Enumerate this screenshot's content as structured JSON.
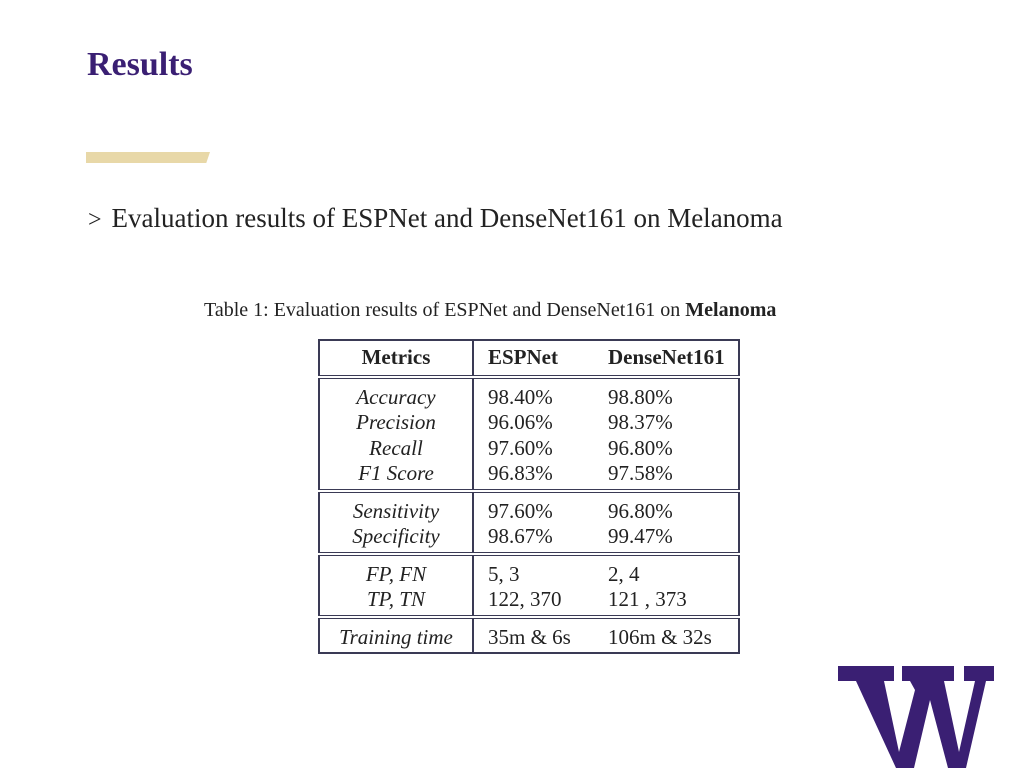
{
  "slide": {
    "title": "Results",
    "bullet_marker": ">",
    "bullet_text": "Evaluation results of ESPNet and DenseNet161 on Melanoma"
  },
  "caption": {
    "prefix": "Table 1: Evaluation results of ESPNet and DenseNet161 on ",
    "bold": "Melanoma"
  },
  "table": {
    "headers": [
      "Metrics",
      "ESPNet",
      "DenseNet161"
    ],
    "groups": [
      [
        [
          "Accuracy",
          "98.40%",
          "98.80%"
        ],
        [
          "Precision",
          "96.06%",
          "98.37%"
        ],
        [
          "Recall",
          "97.60%",
          "96.80%"
        ],
        [
          "F1 Score",
          "96.83%",
          "97.58%"
        ]
      ],
      [
        [
          "Sensitivity",
          "97.60%",
          "96.80%"
        ],
        [
          "Specificity",
          "98.67%",
          "99.47%"
        ]
      ],
      [
        [
          "FP, FN",
          "5, 3",
          "2, 4"
        ],
        [
          "TP, TN",
          "122, 370",
          "121 , 373"
        ]
      ],
      [
        [
          "Training time",
          "35m & 6s",
          "106m & 32s"
        ]
      ]
    ]
  },
  "logo": {
    "name": "uw-w-logo",
    "color": "#3a1f73",
    "letter": "W"
  },
  "colors": {
    "title": "#3a1f73",
    "rule": "#e8d8a8"
  }
}
